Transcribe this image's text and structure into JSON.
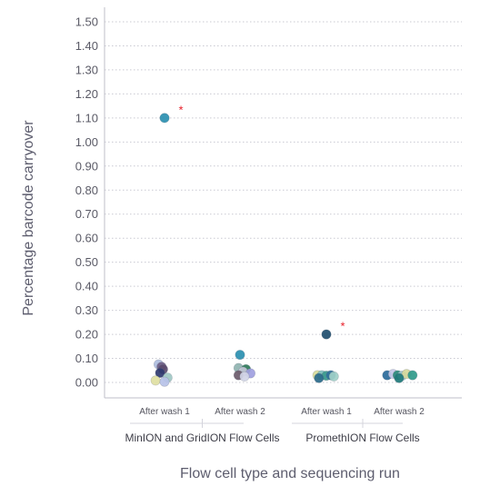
{
  "chart_data": {
    "type": "scatter",
    "xlabel": "Flow cell type and sequencing run",
    "ylabel": "Percentage barcode carryover",
    "ylim": [
      0,
      1.5
    ],
    "yticks": [
      "1.50",
      "1.40",
      "1.30",
      "1.20",
      "1.10",
      "1.00",
      "0.90",
      "0.80",
      "0.70",
      "0.60",
      "0.50",
      "0.40",
      "0.30",
      "0.20",
      "0.10",
      "0.00"
    ],
    "grid": "horizontal dotted",
    "categories": [
      "After wash 1",
      "After wash 2",
      "After wash 1",
      "After wash 2"
    ],
    "groups": [
      {
        "label": "MinION and GridION Flow Cells",
        "categories": [
          0,
          1
        ]
      },
      {
        "label": "PromethION Flow Cells",
        "categories": [
          2,
          3
        ]
      }
    ],
    "significance_marker": "*",
    "significance_color": "#e8202a",
    "significance_annotations": [
      {
        "category": 0,
        "y": 1.14
      },
      {
        "category": 2,
        "y": 0.24
      }
    ],
    "points": [
      {
        "category": 0,
        "offset": 0.0,
        "y": 1.1,
        "color": "#2a8fb0"
      },
      {
        "category": 0,
        "offset": -0.08,
        "y": 0.075,
        "color": "#aebde0"
      },
      {
        "category": 0,
        "offset": -0.04,
        "y": 0.065,
        "color": "#6f5e86"
      },
      {
        "category": 0,
        "offset": -0.02,
        "y": 0.055,
        "color": "#5a4a6e"
      },
      {
        "category": 0,
        "offset": -0.06,
        "y": 0.04,
        "color": "#2f3a70"
      },
      {
        "category": 0,
        "offset": 0.04,
        "y": 0.02,
        "color": "#9fc8c4"
      },
      {
        "category": 0,
        "offset": -0.12,
        "y": 0.008,
        "color": "#e0e0a2"
      },
      {
        "category": 0,
        "offset": 0.0,
        "y": 0.003,
        "color": "#b7c2e8"
      },
      {
        "category": 1,
        "offset": 0.0,
        "y": 0.115,
        "color": "#2a8fb0"
      },
      {
        "category": 1,
        "offset": -0.02,
        "y": 0.06,
        "color": "#8fb3b0"
      },
      {
        "category": 1,
        "offset": 0.08,
        "y": 0.055,
        "color": "#2f7a5a"
      },
      {
        "category": 1,
        "offset": 0.04,
        "y": 0.045,
        "color": "#c4c8d8"
      },
      {
        "category": 1,
        "offset": 0.14,
        "y": 0.038,
        "color": "#9f9fe0"
      },
      {
        "category": 1,
        "offset": -0.02,
        "y": 0.03,
        "color": "#6b5a6a"
      },
      {
        "category": 1,
        "offset": 0.06,
        "y": 0.025,
        "color": "#d0d4e6"
      },
      {
        "category": 2,
        "offset": 0.0,
        "y": 0.2,
        "color": "#1f4e6e"
      },
      {
        "category": 2,
        "offset": -0.12,
        "y": 0.03,
        "color": "#d8dc9a"
      },
      {
        "category": 2,
        "offset": -0.06,
        "y": 0.03,
        "color": "#7fbfbf"
      },
      {
        "category": 2,
        "offset": 0.0,
        "y": 0.028,
        "color": "#3a9a8e"
      },
      {
        "category": 2,
        "offset": 0.06,
        "y": 0.03,
        "color": "#2f6f9a"
      },
      {
        "category": 2,
        "offset": 0.1,
        "y": 0.025,
        "color": "#9fd0c8"
      },
      {
        "category": 2,
        "offset": -0.1,
        "y": 0.018,
        "color": "#2a6a8a"
      },
      {
        "category": 3,
        "offset": -0.16,
        "y": 0.03,
        "color": "#2a6a9a"
      },
      {
        "category": 3,
        "offset": -0.08,
        "y": 0.035,
        "color": "#c6c8e8"
      },
      {
        "category": 3,
        "offset": -0.02,
        "y": 0.03,
        "color": "#2a8a7a"
      },
      {
        "category": 3,
        "offset": 0.04,
        "y": 0.028,
        "color": "#9fc8d0"
      },
      {
        "category": 3,
        "offset": 0.1,
        "y": 0.035,
        "color": "#d6d89a"
      },
      {
        "category": 3,
        "offset": 0.18,
        "y": 0.03,
        "color": "#2f9a8a"
      },
      {
        "category": 3,
        "offset": 0.0,
        "y": 0.018,
        "color": "#1f7a7a"
      }
    ]
  }
}
